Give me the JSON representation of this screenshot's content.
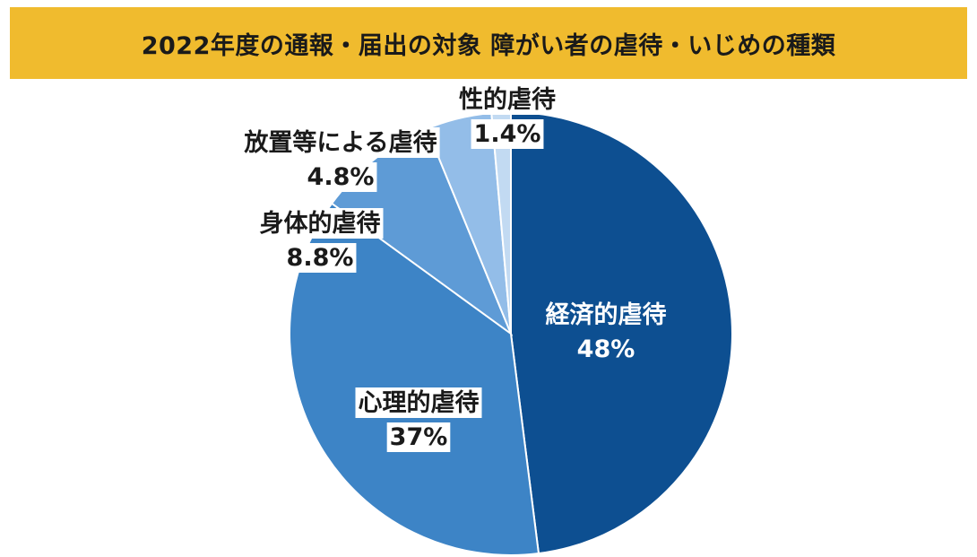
{
  "title": "2022年度の通報・届出の対象 障がい者の虐待・いじめの種類",
  "colors": {
    "banner": "#f0bb2e",
    "slices": [
      "#0d4f91",
      "#3d84c6",
      "#5e9bd6",
      "#93bde8",
      "#c2daf2"
    ]
  },
  "chart_data": {
    "type": "pie",
    "title": "2022年度の通報・届出の対象 障がい者の虐待・いじめの種類",
    "start_angle_deg": 0,
    "direction": "clockwise",
    "slices": [
      {
        "label": "経済的虐待",
        "value": 48,
        "value_label": "48%"
      },
      {
        "label": "心理的虐待",
        "value": 37,
        "value_label": "37%"
      },
      {
        "label": "身体的虐待",
        "value": 8.8,
        "value_label": "8.8%"
      },
      {
        "label": "放置等による虐待",
        "value": 4.8,
        "value_label": "4.8%"
      },
      {
        "label": "性的虐待",
        "value": 1.4,
        "value_label": "1.4%"
      }
    ]
  }
}
